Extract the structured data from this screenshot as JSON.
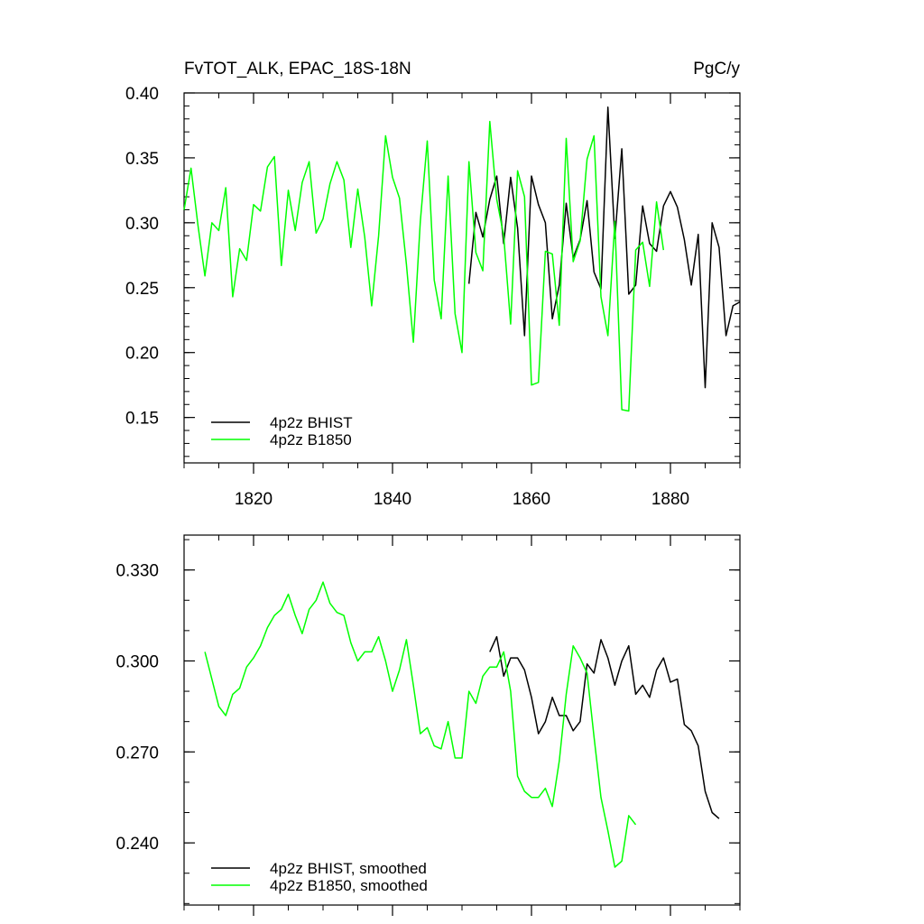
{
  "chart_data": [
    {
      "type": "line",
      "title": "FvTOT_ALK, EPAC_18S-18N",
      "units": "PgC/y",
      "xlabel": "",
      "ylabel": "",
      "xlim": [
        1810,
        1890
      ],
      "ylim": [
        0.115,
        0.4
      ],
      "xticks": [
        1820,
        1840,
        1860,
        1880
      ],
      "xtick_labels": [
        "1820",
        "1840",
        "1860",
        "1880"
      ],
      "yticks": [
        0.15,
        0.2,
        0.25,
        0.3,
        0.35,
        0.4
      ],
      "ytick_labels": [
        "0.15",
        "0.20",
        "0.25",
        "0.30",
        "0.35",
        "0.40"
      ],
      "legend_position": "bottom-left",
      "series": [
        {
          "name": "4p2z BHIST",
          "color": "#000000",
          "x0": 1851,
          "values": [
            0.253,
            0.308,
            0.289,
            0.318,
            0.336,
            0.284,
            0.335,
            0.296,
            0.213,
            0.336,
            0.314,
            0.3,
            0.226,
            0.252,
            0.315,
            0.273,
            0.287,
            0.317,
            0.262,
            0.249,
            0.389,
            0.288,
            0.357,
            0.245,
            0.252,
            0.313,
            0.284,
            0.278,
            0.313,
            0.324,
            0.312,
            0.287,
            0.252,
            0.291,
            0.173,
            0.3,
            0.281,
            0.213,
            0.236,
            0.239
          ]
        },
        {
          "name": "4p2z B1850",
          "color": "#00ff00",
          "x0": 1810,
          "values": [
            0.31,
            0.342,
            0.298,
            0.259,
            0.3,
            0.294,
            0.327,
            0.243,
            0.28,
            0.271,
            0.314,
            0.309,
            0.343,
            0.351,
            0.267,
            0.325,
            0.294,
            0.331,
            0.347,
            0.292,
            0.303,
            0.33,
            0.347,
            0.333,
            0.281,
            0.326,
            0.289,
            0.236,
            0.29,
            0.367,
            0.335,
            0.319,
            0.268,
            0.208,
            0.301,
            0.363,
            0.256,
            0.226,
            0.336,
            0.23,
            0.2,
            0.347,
            0.277,
            0.263,
            0.378,
            0.318,
            0.29,
            0.222,
            0.34,
            0.32,
            0.175,
            0.177,
            0.278,
            0.276,
            0.221,
            0.365,
            0.27,
            0.286,
            0.349,
            0.367,
            0.243,
            0.213,
            0.301,
            0.156,
            0.155,
            0.279,
            0.285,
            0.251,
            0.316,
            0.279
          ]
        }
      ]
    },
    {
      "type": "line",
      "title": "",
      "xlabel": "",
      "ylabel": "",
      "xlim": [
        1810,
        1890
      ],
      "ylim": [
        0.2195,
        0.3415
      ],
      "xticks": [
        1820,
        1840,
        1860,
        1880
      ],
      "xtick_labels": [],
      "yticks": [
        0.24,
        0.27,
        0.3,
        0.33
      ],
      "ytick_labels": [
        "0.240",
        "0.270",
        "0.300",
        "0.330"
      ],
      "legend_position": "bottom-left",
      "series": [
        {
          "name": "4p2z BHIST, smoothed",
          "color": "#000000",
          "x0": 1854,
          "values": [
            0.303,
            0.308,
            0.295,
            0.301,
            0.301,
            0.297,
            0.288,
            0.276,
            0.28,
            0.288,
            0.282,
            0.282,
            0.277,
            0.28,
            0.299,
            0.296,
            0.307,
            0.301,
            0.292,
            0.3,
            0.305,
            0.289,
            0.292,
            0.288,
            0.297,
            0.301,
            0.293,
            0.294,
            0.279,
            0.277,
            0.272,
            0.257,
            0.25,
            0.248
          ]
        },
        {
          "name": "4p2z B1850, smoothed",
          "color": "#00ff00",
          "x0": 1813,
          "values": [
            0.303,
            0.294,
            0.285,
            0.282,
            0.289,
            0.291,
            0.298,
            0.301,
            0.305,
            0.311,
            0.315,
            0.317,
            0.322,
            0.315,
            0.309,
            0.317,
            0.32,
            0.326,
            0.319,
            0.316,
            0.315,
            0.306,
            0.3,
            0.303,
            0.303,
            0.308,
            0.3,
            0.29,
            0.297,
            0.307,
            0.292,
            0.276,
            0.278,
            0.272,
            0.271,
            0.28,
            0.268,
            0.268,
            0.29,
            0.286,
            0.295,
            0.298,
            0.298,
            0.303,
            0.29,
            0.262,
            0.257,
            0.255,
            0.255,
            0.258,
            0.252,
            0.267,
            0.289,
            0.305,
            0.301,
            0.296,
            0.275,
            0.255,
            0.244,
            0.232,
            0.234,
            0.249,
            0.246
          ]
        }
      ]
    }
  ]
}
